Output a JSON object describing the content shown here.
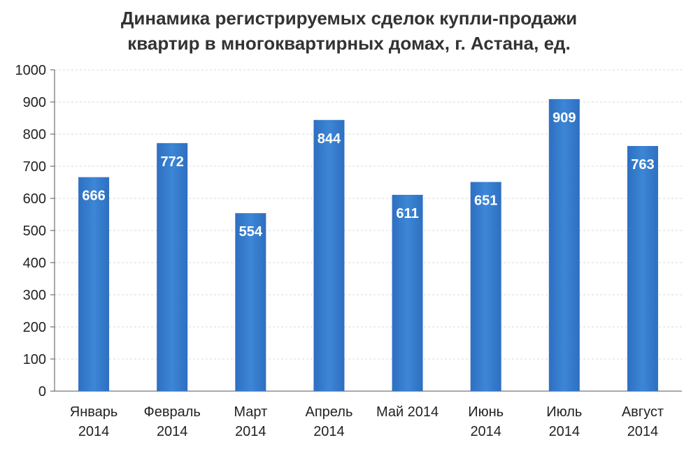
{
  "chart_data": {
    "type": "bar",
    "title_lines": [
      "Динамика регистрируемых  сделок купли-продажи",
      "квартир в многоквартирных домах, г. Астана, ед."
    ],
    "categories": [
      [
        "Январь",
        "2014"
      ],
      [
        "Февраль",
        "2014"
      ],
      [
        "Март",
        "2014"
      ],
      [
        "Апрель",
        "2014"
      ],
      [
        "Май 2014"
      ],
      [
        "Июнь",
        "2014"
      ],
      [
        "Июль",
        "2014"
      ],
      [
        "Август",
        "2014"
      ]
    ],
    "values": [
      666,
      772,
      554,
      844,
      611,
      651,
      909,
      763
    ],
    "data_labels": [
      "666",
      "772",
      "554",
      "844",
      "611",
      "651",
      "909",
      "763"
    ],
    "ylim": [
      0,
      1000
    ],
    "yticks": [
      0,
      100,
      200,
      300,
      400,
      500,
      600,
      700,
      800,
      900,
      1000
    ],
    "grid": true,
    "bar_color": "#2e6fc0",
    "bar_color_light": "#3d86d6"
  }
}
